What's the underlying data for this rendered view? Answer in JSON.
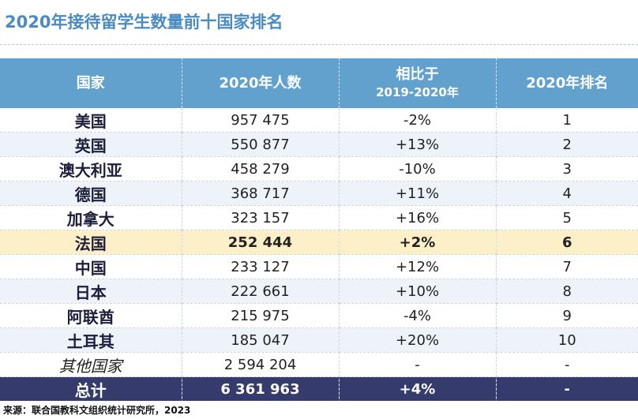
{
  "title": "2020年接待留学生数量前十国家排名",
  "table": {
    "headers": {
      "country": "国家",
      "count": "2020年人数",
      "change_line1": "相比于",
      "change_line2": "2019-2020年",
      "rank": "2020年排名"
    },
    "rows": [
      {
        "country": "美国",
        "count": "957 475",
        "change": "-2%",
        "rank": "1"
      },
      {
        "country": "英国",
        "count": "550 877",
        "change": "+13%",
        "rank": "2"
      },
      {
        "country": "澳大利亚",
        "count": "458 279",
        "change": "-10%",
        "rank": "3"
      },
      {
        "country": "德国",
        "count": "368 717",
        "change": "+11%",
        "rank": "4"
      },
      {
        "country": "加拿大",
        "count": "323 157",
        "change": "+16%",
        "rank": "5"
      },
      {
        "country": "法国",
        "count": "252 444",
        "change": "+2%",
        "rank": "6"
      },
      {
        "country": "中国",
        "count": "233 127",
        "change": "+12%",
        "rank": "7"
      },
      {
        "country": "日本",
        "count": "222 661",
        "change": "+10%",
        "rank": "8"
      },
      {
        "country": "阿联酋",
        "count": "215 975",
        "change": "-4%",
        "rank": "9"
      },
      {
        "country": "土耳其",
        "count": "185 047",
        "change": "+20%",
        "rank": "10"
      },
      {
        "country": "其他国家",
        "count": "2 594 204",
        "change": "-",
        "rank": "-"
      },
      {
        "country": "总计",
        "count": "6 361 963",
        "change": "+4%",
        "rank": "-"
      }
    ]
  },
  "source": "来源：联合国教科文组织统计研究所，2023",
  "colors": {
    "title": "#4a8bc2",
    "header_bg": "#62a0ce",
    "alt_row_bg": "#eef2f9",
    "highlight_row_bg": "#fdefc8",
    "total_row_bg": "#363b6d"
  }
}
